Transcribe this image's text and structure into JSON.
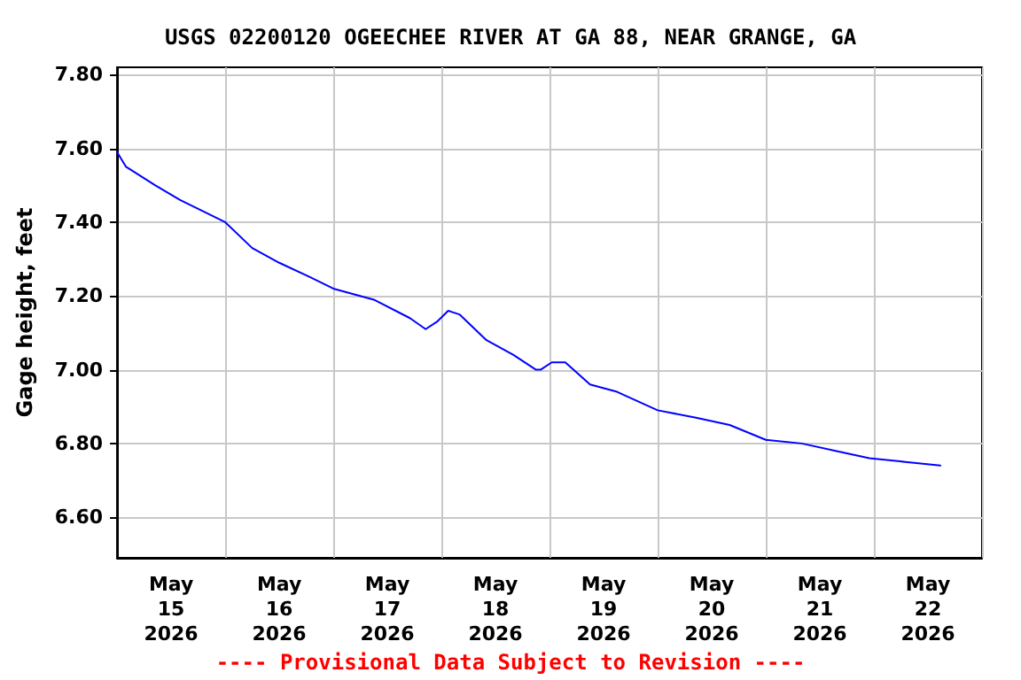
{
  "chart_data": {
    "type": "line",
    "title": "USGS 02200120 OGEECHEE RIVER AT GA 88, NEAR GRANGE, GA",
    "ylabel": "Gage height, feet",
    "annotations": [
      "---- Provisional Data Subject to Revision ----"
    ],
    "x": [
      "2026-05-15T00:00",
      "2026-05-15T02:00",
      "2026-05-15T08:30",
      "2026-05-15T14:00",
      "2026-05-16T00:00",
      "2026-05-16T06:00",
      "2026-05-16T12:00",
      "2026-05-16T19:00",
      "2026-05-17T00:00",
      "2026-05-17T09:00",
      "2026-05-17T17:00",
      "2026-05-17T20:30",
      "2026-05-17T23:00",
      "2026-05-18T01:30",
      "2026-05-18T04:00",
      "2026-05-18T10:00",
      "2026-05-18T16:00",
      "2026-05-18T21:00",
      "2026-05-18T22:00",
      "2026-05-19T00:30",
      "2026-05-19T03:30",
      "2026-05-19T09:00",
      "2026-05-19T15:00",
      "2026-05-20T00:00",
      "2026-05-20T08:30",
      "2026-05-20T16:00",
      "2026-05-21T00:00",
      "2026-05-21T08:00",
      "2026-05-21T15:30",
      "2026-05-21T23:00",
      "2026-05-22T07:00",
      "2026-05-22T14:45"
    ],
    "series": [
      {
        "color": "#0000ff",
        "values": [
          7.59,
          7.55,
          7.5,
          7.46,
          7.4,
          7.33,
          7.29,
          7.25,
          7.22,
          7.19,
          7.14,
          7.11,
          7.13,
          7.16,
          7.15,
          7.08,
          7.04,
          7.0,
          7.0,
          7.02,
          7.02,
          6.96,
          6.94,
          6.89,
          6.87,
          6.85,
          6.81,
          6.8,
          6.78,
          6.76,
          6.75,
          6.74
        ]
      }
    ],
    "xlim": [
      "2026-05-15",
      "2026-05-23"
    ],
    "xticks": [
      {
        "value": "2026-05-15",
        "label": null
      },
      {
        "value": "2026-05-15T12:00",
        "label": "May\n15\n2026"
      },
      {
        "value": "2026-05-16",
        "label": null
      },
      {
        "value": "2026-05-16T12:00",
        "label": "May\n16\n2026"
      },
      {
        "value": "2026-05-17",
        "label": null
      },
      {
        "value": "2026-05-17T12:00",
        "label": "May\n17\n2026"
      },
      {
        "value": "2026-05-18",
        "label": null
      },
      {
        "value": "2026-05-18T12:00",
        "label": "May\n18\n2026"
      },
      {
        "value": "2026-05-19",
        "label": null
      },
      {
        "value": "2026-05-19T12:00",
        "label": "May\n19\n2026"
      },
      {
        "value": "2026-05-20",
        "label": null
      },
      {
        "value": "2026-05-20T12:00",
        "label": "May\n20\n2026"
      },
      {
        "value": "2026-05-21",
        "label": null
      },
      {
        "value": "2026-05-21T12:00",
        "label": "May\n21\n2026"
      },
      {
        "value": "2026-05-22",
        "label": null
      },
      {
        "value": "2026-05-22T12:00",
        "label": "May\n22\n2026"
      },
      {
        "value": "2026-05-23",
        "label": null
      }
    ],
    "ylim": [
      6.49,
      7.82
    ],
    "yticks": [
      {
        "value": 6.6,
        "label": "6.60"
      },
      {
        "value": 6.8,
        "label": "6.80"
      },
      {
        "value": 7.0,
        "label": "7.00"
      },
      {
        "value": 7.2,
        "label": "7.20"
      },
      {
        "value": 7.4,
        "label": "7.40"
      },
      {
        "value": 7.6,
        "label": "7.60"
      },
      {
        "value": 7.8,
        "label": "7.80"
      }
    ],
    "grid": true,
    "marker": "none",
    "line_style": "solid"
  }
}
